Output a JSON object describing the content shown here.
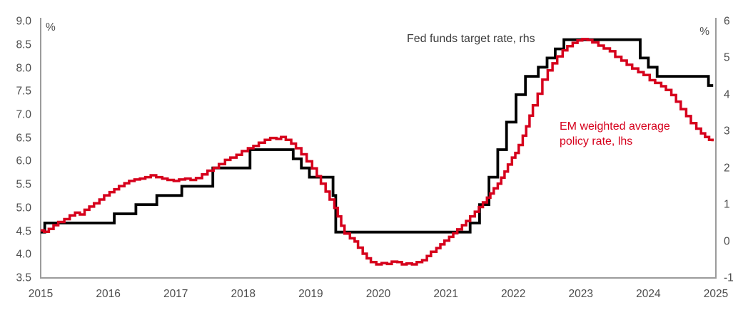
{
  "chart_data": {
    "type": "line",
    "title": "",
    "x_axis": {
      "min": 2015,
      "max": 2025,
      "ticks": [
        "2015",
        "2016",
        "2017",
        "2018",
        "2019",
        "2020",
        "2021",
        "2022",
        "2023",
        "2024",
        "2025"
      ]
    },
    "left_axis": {
      "label": "%",
      "min": 3.5,
      "max": 9.0,
      "ticks": [
        "9.0",
        "8.5",
        "8.0",
        "7.5",
        "7.0",
        "6.5",
        "6.0",
        "5.5",
        "5.0",
        "4.5",
        "4.0",
        "3.5"
      ]
    },
    "right_axis": {
      "label": "%",
      "min": -1,
      "max": 6,
      "ticks": [
        "6",
        "5",
        "4",
        "3",
        "2",
        "1",
        "0",
        "-1"
      ]
    },
    "grid": false,
    "legend_position": "inline-annotations",
    "colors": {
      "fed_line": "#000000",
      "em_line": "#d6001c",
      "axis": "#9b9b9b",
      "tick_text": "#4d4d4d"
    },
    "series": [
      {
        "name": "Fed funds target rate, rhs",
        "axis": "right",
        "color": "#000000",
        "style": "step",
        "points": [
          [
            2015.0,
            0.25
          ],
          [
            2015.06,
            0.5
          ],
          [
            2016.09,
            0.75
          ],
          [
            2016.41,
            1.0
          ],
          [
            2016.72,
            1.25
          ],
          [
            2017.09,
            1.5
          ],
          [
            2017.55,
            2.0
          ],
          [
            2018.1,
            2.5
          ],
          [
            2018.74,
            2.25
          ],
          [
            2018.86,
            2.0
          ],
          [
            2018.98,
            1.75
          ],
          [
            2019.33,
            1.25
          ],
          [
            2019.37,
            0.25
          ],
          [
            2021.36,
            0.5
          ],
          [
            2021.5,
            1.0
          ],
          [
            2021.64,
            1.75
          ],
          [
            2021.77,
            2.5
          ],
          [
            2021.9,
            3.25
          ],
          [
            2022.04,
            4.0
          ],
          [
            2022.18,
            4.5
          ],
          [
            2022.37,
            4.75
          ],
          [
            2022.5,
            5.0
          ],
          [
            2022.62,
            5.25
          ],
          [
            2022.75,
            5.5
          ],
          [
            2023.88,
            5.0
          ],
          [
            2024.0,
            4.75
          ],
          [
            2024.13,
            4.5
          ],
          [
            2024.89,
            4.25
          ],
          [
            2024.96,
            4.25
          ]
        ]
      },
      {
        "name": "EM weighted average policy rate, lhs",
        "axis": "left",
        "color": "#d6001c",
        "style": "step",
        "points": [
          [
            2015.0,
            4.52
          ],
          [
            2015.05,
            4.49
          ],
          [
            2015.12,
            4.55
          ],
          [
            2015.19,
            4.63
          ],
          [
            2015.26,
            4.7
          ],
          [
            2015.35,
            4.76
          ],
          [
            2015.43,
            4.84
          ],
          [
            2015.51,
            4.9
          ],
          [
            2015.58,
            4.86
          ],
          [
            2015.65,
            4.96
          ],
          [
            2015.72,
            5.03
          ],
          [
            2015.79,
            5.1
          ],
          [
            2015.87,
            5.18
          ],
          [
            2015.94,
            5.27
          ],
          [
            2016.02,
            5.34
          ],
          [
            2016.09,
            5.4
          ],
          [
            2016.16,
            5.47
          ],
          [
            2016.24,
            5.53
          ],
          [
            2016.31,
            5.58
          ],
          [
            2016.39,
            5.61
          ],
          [
            2016.47,
            5.63
          ],
          [
            2016.55,
            5.66
          ],
          [
            2016.63,
            5.7
          ],
          [
            2016.71,
            5.66
          ],
          [
            2016.8,
            5.63
          ],
          [
            2016.88,
            5.6
          ],
          [
            2016.97,
            5.58
          ],
          [
            2017.05,
            5.61
          ],
          [
            2017.14,
            5.63
          ],
          [
            2017.22,
            5.6
          ],
          [
            2017.3,
            5.64
          ],
          [
            2017.39,
            5.72
          ],
          [
            2017.47,
            5.8
          ],
          [
            2017.56,
            5.86
          ],
          [
            2017.64,
            5.94
          ],
          [
            2017.73,
            6.03
          ],
          [
            2017.81,
            6.08
          ],
          [
            2017.9,
            6.14
          ],
          [
            2017.98,
            6.22
          ],
          [
            2018.07,
            6.28
          ],
          [
            2018.15,
            6.33
          ],
          [
            2018.23,
            6.4
          ],
          [
            2018.32,
            6.46
          ],
          [
            2018.4,
            6.5
          ],
          [
            2018.49,
            6.48
          ],
          [
            2018.56,
            6.52
          ],
          [
            2018.63,
            6.46
          ],
          [
            2018.71,
            6.38
          ],
          [
            2018.78,
            6.28
          ],
          [
            2018.86,
            6.15
          ],
          [
            2018.94,
            6.0
          ],
          [
            2019.02,
            5.85
          ],
          [
            2019.09,
            5.68
          ],
          [
            2019.15,
            5.52
          ],
          [
            2019.22,
            5.35
          ],
          [
            2019.28,
            5.18
          ],
          [
            2019.35,
            5.0
          ],
          [
            2019.4,
            4.82
          ],
          [
            2019.45,
            4.62
          ],
          [
            2019.5,
            4.45
          ],
          [
            2019.58,
            4.35
          ],
          [
            2019.65,
            4.28
          ],
          [
            2019.7,
            4.15
          ],
          [
            2019.77,
            4.02
          ],
          [
            2019.83,
            3.92
          ],
          [
            2019.89,
            3.84
          ],
          [
            2019.97,
            3.79
          ],
          [
            2020.05,
            3.82
          ],
          [
            2020.13,
            3.8
          ],
          [
            2020.2,
            3.85
          ],
          [
            2020.28,
            3.84
          ],
          [
            2020.35,
            3.79
          ],
          [
            2020.42,
            3.81
          ],
          [
            2020.5,
            3.79
          ],
          [
            2020.57,
            3.84
          ],
          [
            2020.65,
            3.88
          ],
          [
            2020.72,
            3.97
          ],
          [
            2020.78,
            4.06
          ],
          [
            2020.86,
            4.14
          ],
          [
            2020.92,
            4.22
          ],
          [
            2020.98,
            4.3
          ],
          [
            2021.05,
            4.38
          ],
          [
            2021.11,
            4.46
          ],
          [
            2021.17,
            4.54
          ],
          [
            2021.24,
            4.63
          ],
          [
            2021.3,
            4.72
          ],
          [
            2021.36,
            4.82
          ],
          [
            2021.43,
            4.92
          ],
          [
            2021.49,
            5.02
          ],
          [
            2021.55,
            5.12
          ],
          [
            2021.61,
            5.22
          ],
          [
            2021.66,
            5.31
          ],
          [
            2021.71,
            5.42
          ],
          [
            2021.77,
            5.52
          ],
          [
            2021.82,
            5.65
          ],
          [
            2021.87,
            5.78
          ],
          [
            2021.92,
            5.93
          ],
          [
            2021.98,
            6.08
          ],
          [
            2022.03,
            6.18
          ],
          [
            2022.08,
            6.35
          ],
          [
            2022.14,
            6.55
          ],
          [
            2022.19,
            6.75
          ],
          [
            2022.24,
            6.98
          ],
          [
            2022.29,
            7.2
          ],
          [
            2022.36,
            7.45
          ],
          [
            2022.43,
            7.75
          ],
          [
            2022.51,
            7.95
          ],
          [
            2022.58,
            8.1
          ],
          [
            2022.65,
            8.25
          ],
          [
            2022.73,
            8.38
          ],
          [
            2022.8,
            8.47
          ],
          [
            2022.88,
            8.54
          ],
          [
            2022.95,
            8.59
          ],
          [
            2023.02,
            8.62
          ],
          [
            2023.1,
            8.6
          ],
          [
            2023.17,
            8.55
          ],
          [
            2023.26,
            8.48
          ],
          [
            2023.34,
            8.42
          ],
          [
            2023.43,
            8.36
          ],
          [
            2023.51,
            8.24
          ],
          [
            2023.6,
            8.16
          ],
          [
            2023.68,
            8.07
          ],
          [
            2023.76,
            7.99
          ],
          [
            2023.85,
            7.91
          ],
          [
            2023.93,
            7.85
          ],
          [
            2024.02,
            7.74
          ],
          [
            2024.1,
            7.68
          ],
          [
            2024.19,
            7.61
          ],
          [
            2024.26,
            7.53
          ],
          [
            2024.34,
            7.42
          ],
          [
            2024.41,
            7.28
          ],
          [
            2024.48,
            7.12
          ],
          [
            2024.56,
            6.97
          ],
          [
            2024.63,
            6.82
          ],
          [
            2024.71,
            6.7
          ],
          [
            2024.78,
            6.6
          ],
          [
            2024.84,
            6.52
          ],
          [
            2024.9,
            6.46
          ],
          [
            2024.95,
            6.43
          ]
        ]
      }
    ],
    "annotations": [
      {
        "text": "Fed funds target rate, rhs",
        "color": "#3c3c3c"
      },
      {
        "text": "EM weighted average policy rate, lhs",
        "color": "#d6001c"
      }
    ]
  }
}
